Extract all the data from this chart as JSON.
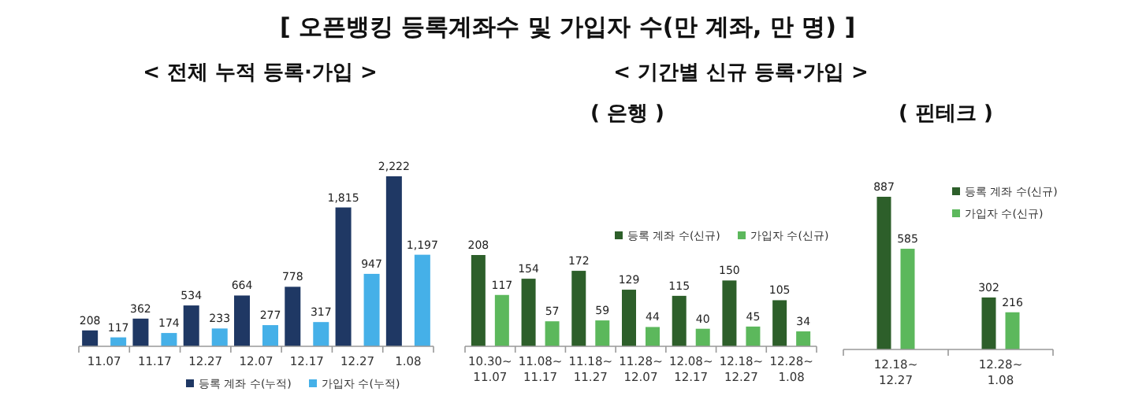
{
  "chart_data": [
    {
      "type": "bar",
      "title": "[ 오픈뱅킹 등록계좌수 및 가입자 수(만 계좌, 만 명) ]",
      "subtitle": "< 전체 누적 등록·가입 >",
      "categories": [
        "11.07",
        "11.17",
        "12.27",
        "12.07",
        "12.17",
        "12.27",
        "1.08"
      ],
      "legend": "bottom",
      "series": [
        {
          "name": "등록 계좌 수(누적)",
          "color": "#1f3864",
          "values": [
            208,
            362,
            534,
            664,
            778,
            1815,
            2222
          ],
          "value_labels": [
            "208",
            "362",
            "534",
            "664",
            "778",
            "1,815",
            "2,222"
          ]
        },
        {
          "name": "가입자 수(누적)",
          "color": "#45b0e8",
          "values": [
            117,
            174,
            233,
            277,
            317,
            947,
            1197
          ],
          "value_labels": [
            "117",
            "174",
            "233",
            "277",
            "317",
            "947",
            "1,197"
          ]
        }
      ]
    },
    {
      "type": "bar",
      "title": "< 기간별 신규 등록·가입 >",
      "subtitle": "( 은행 )",
      "categories": [
        "10.30~\n11.07",
        "11.08~\n11.17",
        "11.18~\n11.27",
        "11.28~\n12.07",
        "12.08~\n12.17",
        "12.18~\n12.27",
        "12.28~\n1.08"
      ],
      "legend": "top right",
      "data_labels": true,
      "series": [
        {
          "name": "등록 계좌 수(신규)",
          "color": "#2d5f2a",
          "values": [
            208,
            154,
            172,
            129,
            115,
            150,
            105
          ]
        },
        {
          "name": "가입자 수(신규)",
          "color": "#5cb85c",
          "values": [
            117,
            57,
            59,
            44,
            40,
            45,
            34
          ]
        }
      ]
    },
    {
      "type": "bar",
      "title": "( 핀테크 )",
      "categories": [
        "12.18~\n12.27",
        "12.28~\n1.08"
      ],
      "legend": "top right",
      "data_labels": true,
      "series": [
        {
          "name": "등록 계좌 수(신규)",
          "color": "#2d5f2a",
          "values": [
            887,
            302
          ]
        },
        {
          "name": "가입자 수(신규)",
          "color": "#5cb85c",
          "values": [
            585,
            216
          ]
        }
      ]
    }
  ]
}
